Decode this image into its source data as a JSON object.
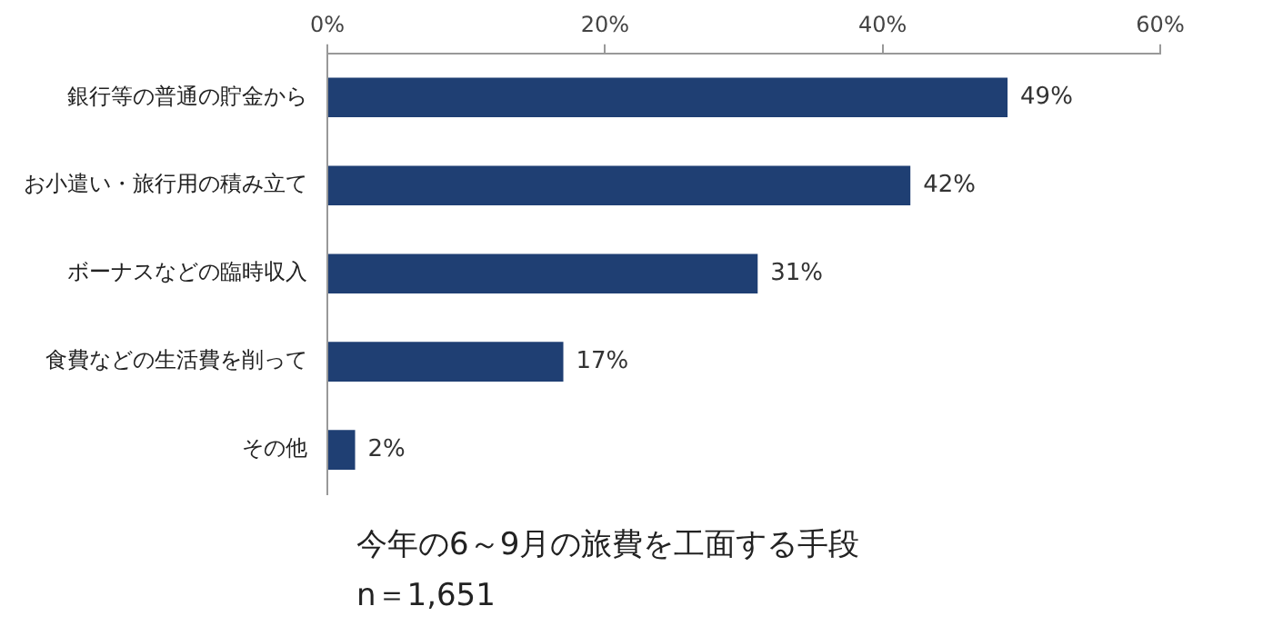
{
  "chart_data": {
    "type": "bar",
    "orientation": "horizontal",
    "title": "今年の6～9月の旅費を工面する手段",
    "subtitle": "n＝1,651",
    "categories": [
      "銀行等の普通の貯金から",
      "お小遣い・旅行用の積み立て",
      "ボーナスなどの臨時収入",
      "食費などの生活費を削って",
      "その他"
    ],
    "values": [
      49,
      42,
      31,
      17,
      2
    ],
    "value_labels": [
      "49%",
      "42%",
      "31%",
      "17%",
      "2%"
    ],
    "color": "#1f3f73",
    "xlim": [
      0,
      60
    ],
    "xticks": [
      {
        "value": 0,
        "label": "0%"
      },
      {
        "value": 20,
        "label": "20%"
      },
      {
        "value": 40,
        "label": "40%"
      },
      {
        "value": 60,
        "label": "60%"
      }
    ],
    "grid": false,
    "legend": false
  }
}
